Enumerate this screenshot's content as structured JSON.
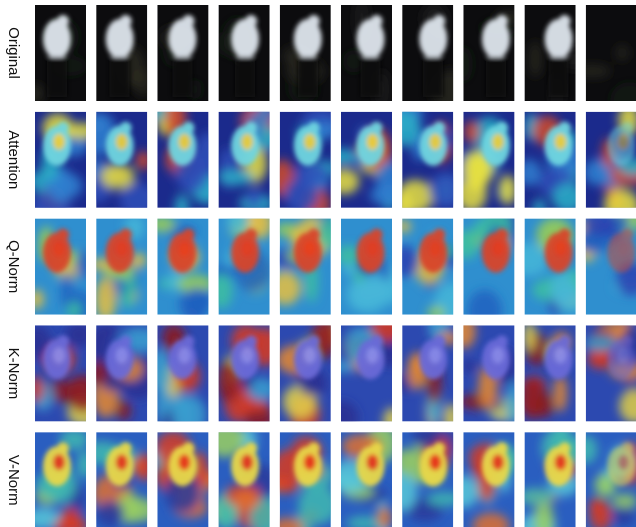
{
  "row_labels": [
    "Original",
    "Attention",
    "Q-Norm",
    "K-Norm",
    "V-Norm"
  ]
}
